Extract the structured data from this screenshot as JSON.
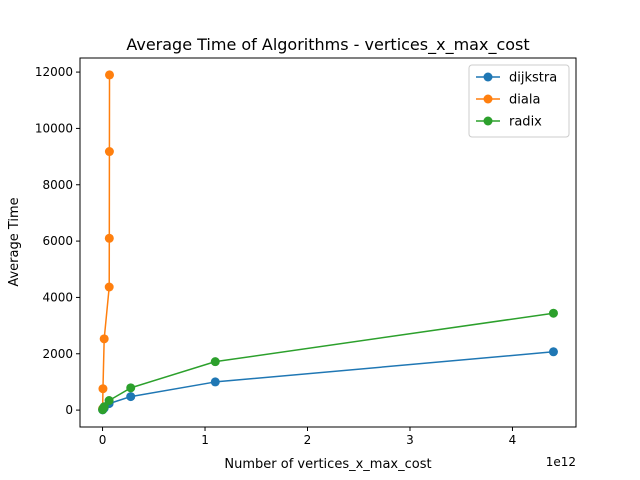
{
  "chart_data": {
    "type": "line",
    "title": "Average Time of Algorithms - vertices_x_max_cost",
    "xlabel": "Number of vertices_x_max_cost",
    "ylabel": "Average Time",
    "x_offset_label": "1e12",
    "x_scale": 1000000000000.0,
    "xlim": [
      -220000000000.0,
      4620000000000.0
    ],
    "ylim": [
      -600,
      12500
    ],
    "x_ticks": [
      0,
      1000000000000.0,
      2000000000000.0,
      3000000000000.0,
      4000000000000.0
    ],
    "x_tick_labels": [
      "0",
      "1",
      "2",
      "3",
      "4"
    ],
    "y_ticks": [
      0,
      2000,
      4000,
      6000,
      8000,
      10000,
      12000
    ],
    "y_tick_labels": [
      "0",
      "2000",
      "4000",
      "6000",
      "8000",
      "10000",
      "12000"
    ],
    "grid": false,
    "legend_position": "top-right",
    "series": [
      {
        "name": "dijkstra",
        "color": "#1f77b4",
        "x": [
          1000000000.0,
          4000000000.0,
          16000000000.0,
          64000000000.0,
          275000000000.0,
          1100000000000.0,
          4400000000000.0
        ],
        "y": [
          10,
          30,
          70,
          230,
          480,
          1000,
          2070
        ]
      },
      {
        "name": "diala",
        "color": "#ff7f0e",
        "x": [
          1000000000.0,
          4000000000.0,
          16000000000.0,
          65000000000.0,
          66000000000.0,
          67000000000.0,
          68000000000.0
        ],
        "y": [
          50,
          760,
          2530,
          4370,
          6100,
          9180,
          11900
        ]
      },
      {
        "name": "radix",
        "color": "#2ca02c",
        "x": [
          1000000000.0,
          4000000000.0,
          16000000000.0,
          64000000000.0,
          275000000000.0,
          1100000000000.0,
          4400000000000.0
        ],
        "y": [
          15,
          50,
          120,
          340,
          790,
          1720,
          3440
        ]
      }
    ]
  }
}
